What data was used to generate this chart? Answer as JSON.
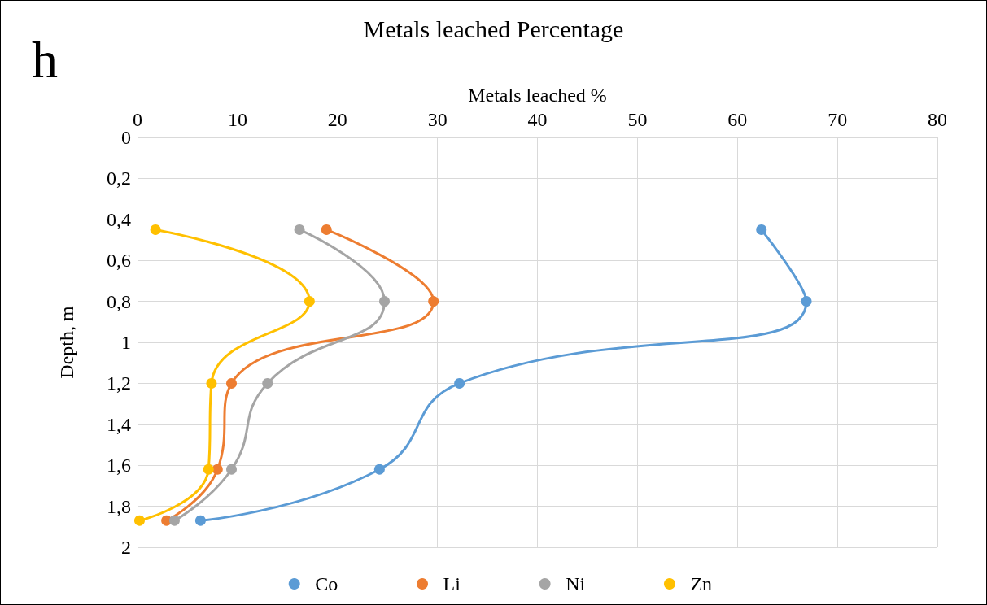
{
  "chart_data": {
    "type": "line",
    "title": "Metals leached Percentage",
    "xlabel": "Metals leached %",
    "ylabel": "Depth, m",
    "annotations": [
      "h"
    ],
    "xlim": [
      0,
      80
    ],
    "xticks": [
      0,
      10,
      20,
      30,
      40,
      50,
      60,
      70,
      80
    ],
    "ylim": [
      2,
      0
    ],
    "yticks": [
      0,
      {
        "value": 0.2,
        "label": "0,2"
      },
      {
        "value": 0.4,
        "label": "0,4"
      },
      {
        "value": 0.6,
        "label": "0,6"
      },
      {
        "value": 0.8,
        "label": "0,8"
      },
      1,
      {
        "value": 1.2,
        "label": "1,2"
      },
      {
        "value": 1.4,
        "label": "1,4"
      },
      {
        "value": 1.6,
        "label": "1,6"
      },
      {
        "value": 1.8,
        "label": "1,8"
      },
      2
    ],
    "grid": true,
    "legend": "bottom",
    "marker": "circle",
    "line_style": "solid",
    "series": [
      {
        "name": "Co",
        "color": "#5b9bd5",
        "x": [
          62.4,
          66.9,
          32.2,
          24.2,
          6.3
        ],
        "values": [
          0.45,
          0.8,
          1.2,
          1.62,
          1.87
        ]
      },
      {
        "name": "Li",
        "color": "#ed7d31",
        "x": [
          18.9,
          29.6,
          9.4,
          8.0,
          2.9
        ],
        "values": [
          0.45,
          0.8,
          1.2,
          1.62,
          1.87
        ]
      },
      {
        "name": "Ni",
        "color": "#a5a5a5",
        "x": [
          16.2,
          24.7,
          13.0,
          9.4,
          3.7
        ],
        "values": [
          0.45,
          0.8,
          1.2,
          1.62,
          1.87
        ]
      },
      {
        "name": "Zn",
        "color": "#ffc000",
        "x": [
          1.8,
          17.2,
          7.4,
          7.1,
          0.2
        ],
        "values": [
          0.45,
          0.8,
          1.2,
          1.62,
          1.87
        ]
      }
    ]
  }
}
